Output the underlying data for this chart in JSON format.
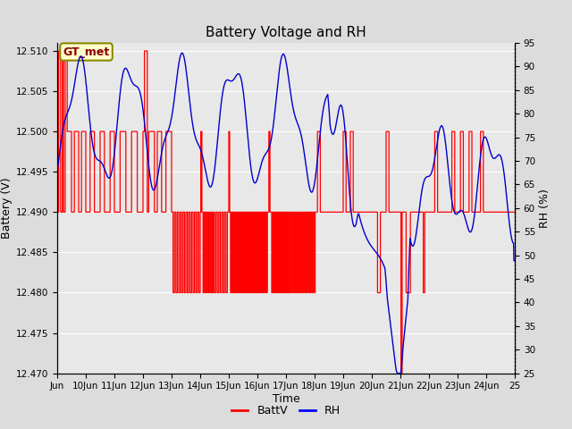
{
  "title": "Battery Voltage and RH",
  "xlabel": "Time",
  "ylabel_left": "Battery (V)",
  "ylabel_right": "RH (%)",
  "annotation_text": "GT_met",
  "xlim": [
    9,
    25
  ],
  "ylim_left": [
    12.47,
    12.511
  ],
  "ylim_right": [
    25,
    95
  ],
  "xtick_labels": [
    "Jun",
    "10Jun",
    "11Jun",
    "12Jun",
    "13Jun",
    "14Jun",
    "15Jun",
    "16Jun",
    "17Jun",
    "18Jun",
    "19Jun",
    "20Jun",
    "21Jun",
    "22Jun",
    "23Jun",
    "24Jun",
    "25"
  ],
  "xtick_positions": [
    9,
    10,
    11,
    12,
    13,
    14,
    15,
    16,
    17,
    18,
    19,
    20,
    21,
    22,
    23,
    24,
    25
  ],
  "ytick_left": [
    12.47,
    12.475,
    12.48,
    12.485,
    12.49,
    12.495,
    12.5,
    12.505,
    12.51
  ],
  "ytick_right": [
    25,
    30,
    35,
    40,
    45,
    50,
    55,
    60,
    65,
    70,
    75,
    80,
    85,
    90,
    95
  ],
  "bg_color": "#dcdcdc",
  "plot_bg_color": "#e8e8e8",
  "grid_color": "#ffffff",
  "batt_color": "#ff0000",
  "rh_color": "#0000cc",
  "legend_batt": "BattV",
  "legend_rh": "RH"
}
